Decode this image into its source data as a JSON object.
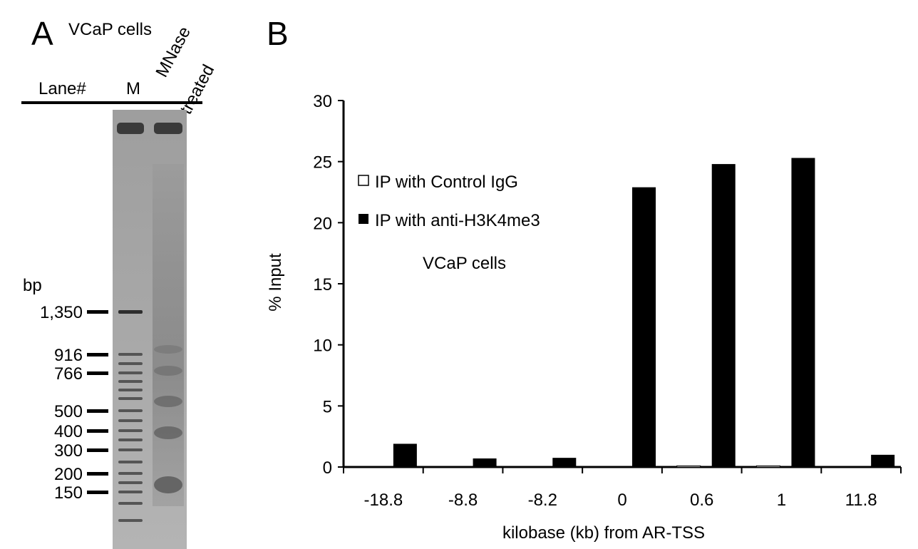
{
  "panel_a": {
    "letter": "A",
    "title": "VCaP cells",
    "lane_header": "Lane#",
    "lane_m": "M",
    "lane_treated_1": "MNase",
    "lane_treated_2": "treated",
    "bp_label": "bp",
    "markers": [
      "1,350",
      "916",
      "766",
      "500",
      "400",
      "300",
      "200",
      "150"
    ]
  },
  "panel_b": {
    "letter": "B",
    "legend": {
      "control_label": "IP with Control IgG",
      "treated_label": "IP with anti-H3K4me3",
      "annotation": "VCaP cells"
    }
  },
  "chart_data": {
    "type": "bar",
    "xlabel": "kilobase (kb) from AR-TSS",
    "ylabel": "% Input",
    "ylim": [
      0,
      30
    ],
    "yticks": [
      0,
      5,
      10,
      15,
      20,
      25,
      30
    ],
    "categories": [
      "-18.8",
      "-8.8",
      "-8.2",
      "0",
      "0.6",
      "1",
      "11.8"
    ],
    "series": [
      {
        "name": "IP with Control IgG",
        "values": [
          0.05,
          0.05,
          0.05,
          0.05,
          0.1,
          0.1,
          0.05
        ],
        "color": "#ffffff"
      },
      {
        "name": "IP with anti-H3K4me3",
        "values": [
          1.9,
          0.7,
          0.75,
          22.9,
          24.8,
          25.3,
          1.0
        ],
        "color": "#000000"
      }
    ],
    "legend_position": "top-left",
    "grid": false
  }
}
